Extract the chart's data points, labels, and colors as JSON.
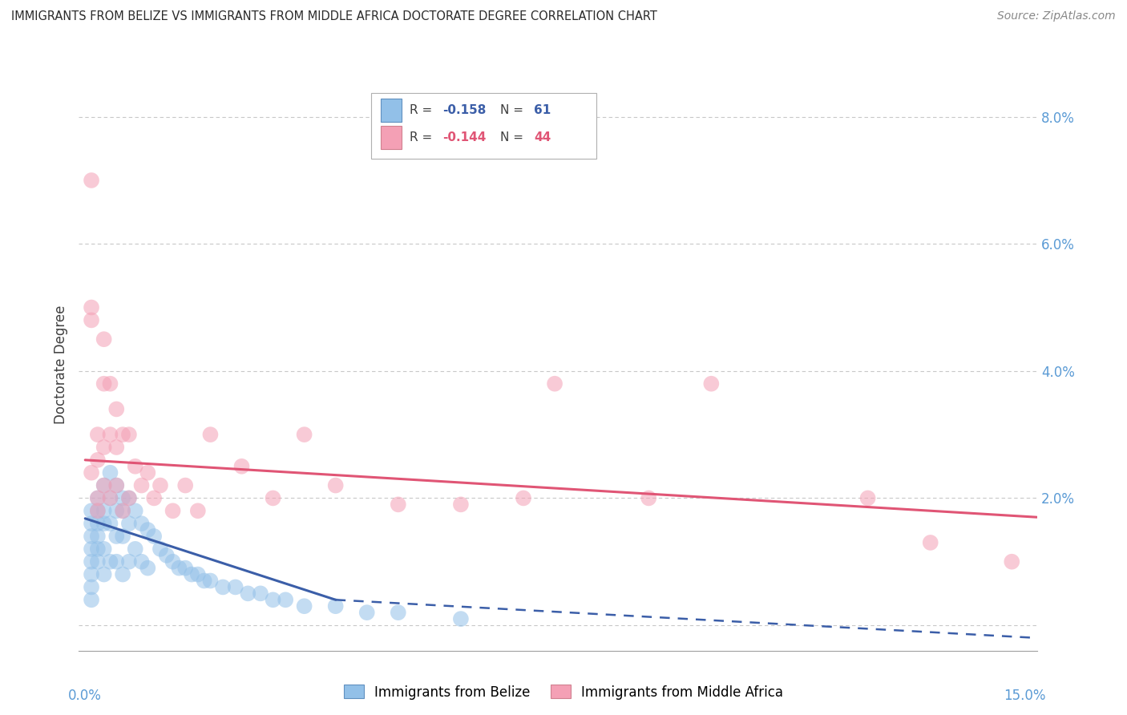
{
  "title": "IMMIGRANTS FROM BELIZE VS IMMIGRANTS FROM MIDDLE AFRICA DOCTORATE DEGREE CORRELATION CHART",
  "source": "Source: ZipAtlas.com",
  "ylabel": "Doctorate Degree",
  "y_ticks": [
    0.0,
    0.02,
    0.04,
    0.06,
    0.08
  ],
  "y_tick_labels": [
    "",
    "2.0%",
    "4.0%",
    "6.0%",
    "8.0%"
  ],
  "x_lim": [
    -0.001,
    0.152
  ],
  "y_lim": [
    -0.004,
    0.086
  ],
  "legend_label1": "Immigrants from Belize",
  "legend_label2": "Immigrants from Middle Africa",
  "color_blue": "#92c0e8",
  "color_pink": "#f4a0b5",
  "color_blue_line": "#3b5ea8",
  "color_pink_line": "#e05575",
  "color_axis_labels": "#5b9bd5",
  "color_grid": "#c8c8c8",
  "belize_x": [
    0.001,
    0.001,
    0.001,
    0.001,
    0.001,
    0.001,
    0.001,
    0.001,
    0.002,
    0.002,
    0.002,
    0.002,
    0.002,
    0.002,
    0.003,
    0.003,
    0.003,
    0.003,
    0.003,
    0.004,
    0.004,
    0.004,
    0.004,
    0.005,
    0.005,
    0.005,
    0.005,
    0.006,
    0.006,
    0.006,
    0.006,
    0.007,
    0.007,
    0.007,
    0.008,
    0.008,
    0.009,
    0.009,
    0.01,
    0.01,
    0.011,
    0.012,
    0.013,
    0.014,
    0.015,
    0.016,
    0.017,
    0.018,
    0.019,
    0.02,
    0.022,
    0.024,
    0.026,
    0.028,
    0.03,
    0.032,
    0.035,
    0.04,
    0.045,
    0.05,
    0.06
  ],
  "belize_y": [
    0.018,
    0.016,
    0.014,
    0.012,
    0.01,
    0.008,
    0.006,
    0.004,
    0.02,
    0.018,
    0.016,
    0.014,
    0.012,
    0.01,
    0.022,
    0.018,
    0.016,
    0.012,
    0.008,
    0.024,
    0.02,
    0.016,
    0.01,
    0.022,
    0.018,
    0.014,
    0.01,
    0.02,
    0.018,
    0.014,
    0.008,
    0.02,
    0.016,
    0.01,
    0.018,
    0.012,
    0.016,
    0.01,
    0.015,
    0.009,
    0.014,
    0.012,
    0.011,
    0.01,
    0.009,
    0.009,
    0.008,
    0.008,
    0.007,
    0.007,
    0.006,
    0.006,
    0.005,
    0.005,
    0.004,
    0.004,
    0.003,
    0.003,
    0.002,
    0.002,
    0.001
  ],
  "africa_x": [
    0.001,
    0.001,
    0.001,
    0.001,
    0.002,
    0.002,
    0.002,
    0.002,
    0.003,
    0.003,
    0.003,
    0.003,
    0.004,
    0.004,
    0.004,
    0.005,
    0.005,
    0.005,
    0.006,
    0.006,
    0.007,
    0.007,
    0.008,
    0.009,
    0.01,
    0.011,
    0.012,
    0.014,
    0.016,
    0.018,
    0.02,
    0.025,
    0.03,
    0.035,
    0.04,
    0.05,
    0.06,
    0.07,
    0.075,
    0.09,
    0.1,
    0.125,
    0.135,
    0.148
  ],
  "africa_y": [
    0.07,
    0.05,
    0.048,
    0.024,
    0.03,
    0.026,
    0.02,
    0.018,
    0.045,
    0.038,
    0.028,
    0.022,
    0.038,
    0.03,
    0.02,
    0.034,
    0.028,
    0.022,
    0.03,
    0.018,
    0.03,
    0.02,
    0.025,
    0.022,
    0.024,
    0.02,
    0.022,
    0.018,
    0.022,
    0.018,
    0.03,
    0.025,
    0.02,
    0.03,
    0.022,
    0.019,
    0.019,
    0.02,
    0.038,
    0.02,
    0.038,
    0.02,
    0.013,
    0.01
  ],
  "blue_line_x0": 0.0,
  "blue_line_y0": 0.0168,
  "blue_line_x1": 0.04,
  "blue_line_y1": 0.004,
  "blue_line_dash_x0": 0.04,
  "blue_line_dash_y0": 0.004,
  "blue_line_dash_x1": 0.152,
  "blue_line_dash_y1": -0.002,
  "pink_line_x0": 0.0,
  "pink_line_y0": 0.026,
  "pink_line_x1": 0.152,
  "pink_line_y1": 0.017
}
